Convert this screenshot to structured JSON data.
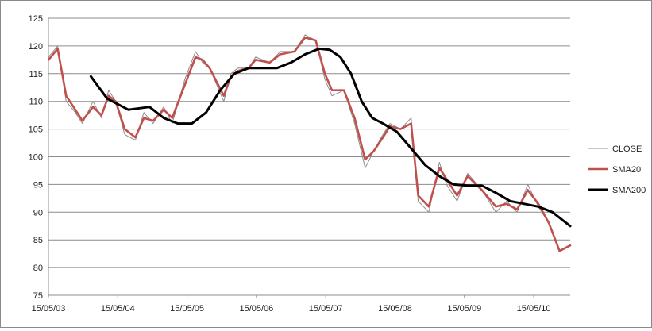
{
  "chart_data": {
    "type": "line",
    "title": "",
    "xlabel": "",
    "ylabel": "",
    "ylim": [
      75,
      125
    ],
    "yticks": [
      75,
      80,
      85,
      90,
      95,
      100,
      105,
      110,
      115,
      120,
      125
    ],
    "x_ticks": [
      "15/05/03",
      "15/05/04",
      "15/05/05",
      "15/05/06",
      "15/05/07",
      "15/05/08",
      "15/05/09",
      "15/05/10"
    ],
    "xlim": [
      2003.37,
      2010.75
    ],
    "grid": "horizontal",
    "legend_position": "right",
    "series": [
      {
        "name": "CLOSE",
        "color": "#8c8c8c",
        "x": [
          2003.37,
          2003.5,
          2003.62,
          2003.75,
          2003.85,
          2004.0,
          2004.12,
          2004.22,
          2004.32,
          2004.45,
          2004.6,
          2004.72,
          2004.85,
          2005.0,
          2005.12,
          2005.3,
          2005.45,
          2005.55,
          2005.65,
          2005.85,
          2005.95,
          2006.05,
          2006.2,
          2006.3,
          2006.5,
          2006.65,
          2006.85,
          2007.0,
          2007.15,
          2007.28,
          2007.38,
          2007.55,
          2007.7,
          2007.85,
          2007.97,
          2008.1,
          2008.2,
          2008.35,
          2008.5,
          2008.6,
          2008.75,
          2008.9,
          2009.0,
          2009.15,
          2009.3,
          2009.5,
          2009.7,
          2009.85,
          2010.0,
          2010.15,
          2010.3,
          2010.45,
          2010.6,
          2010.75
        ],
        "y": [
          118,
          120,
          110,
          108,
          106,
          110,
          107,
          112,
          110,
          104,
          103,
          108,
          106,
          109,
          106,
          114,
          119,
          117,
          116,
          110,
          115,
          116,
          116,
          118,
          117,
          119,
          119,
          122,
          121,
          114,
          111,
          112,
          106,
          98,
          101,
          104,
          106,
          105,
          107,
          92,
          90,
          99,
          95,
          92,
          97,
          94,
          90,
          92,
          90,
          95,
          91,
          88,
          83,
          84
        ]
      },
      {
        "name": "SMA20",
        "color": "#c0504d",
        "x": [
          2003.37,
          2003.5,
          2003.62,
          2003.75,
          2003.85,
          2004.0,
          2004.12,
          2004.22,
          2004.32,
          2004.45,
          2004.6,
          2004.72,
          2004.85,
          2005.0,
          2005.12,
          2005.3,
          2005.45,
          2005.55,
          2005.65,
          2005.85,
          2005.95,
          2006.05,
          2006.2,
          2006.3,
          2006.5,
          2006.65,
          2006.85,
          2007.0,
          2007.15,
          2007.28,
          2007.38,
          2007.55,
          2007.7,
          2007.85,
          2007.97,
          2008.1,
          2008.2,
          2008.35,
          2008.5,
          2008.6,
          2008.75,
          2008.9,
          2009.0,
          2009.15,
          2009.3,
          2009.5,
          2009.7,
          2009.85,
          2010.0,
          2010.15,
          2010.3,
          2010.45,
          2010.6,
          2010.75
        ],
        "y": [
          117.5,
          119.5,
          111,
          108.5,
          106.5,
          109,
          107.5,
          111,
          110,
          105,
          103.5,
          107,
          106.5,
          108.5,
          107,
          113,
          118,
          117.5,
          116,
          111,
          114.5,
          115.5,
          116,
          117.5,
          117,
          118.5,
          119,
          121.5,
          121,
          115,
          112,
          112,
          107,
          99.5,
          101,
          103.5,
          105.5,
          105,
          106,
          93,
          91,
          98,
          96,
          93,
          96.5,
          94,
          91,
          91.5,
          90.5,
          94,
          91.5,
          88,
          83,
          84
        ]
      },
      {
        "name": "SMA200",
        "color": "#000000",
        "x": [
          2003.97,
          2004.2,
          2004.5,
          2004.8,
          2005.0,
          2005.2,
          2005.4,
          2005.6,
          2005.8,
          2006.0,
          2006.2,
          2006.4,
          2006.6,
          2006.8,
          2007.0,
          2007.2,
          2007.35,
          2007.5,
          2007.65,
          2007.8,
          2007.95,
          2008.1,
          2008.3,
          2008.5,
          2008.7,
          2008.9,
          2009.1,
          2009.3,
          2009.5,
          2009.7,
          2009.9,
          2010.1,
          2010.3,
          2010.5,
          2010.75
        ],
        "y": [
          114.5,
          110.5,
          108.5,
          109,
          107,
          106,
          106,
          108,
          112,
          115,
          116,
          116,
          116,
          117,
          118.5,
          119.5,
          119.3,
          118,
          115,
          110,
          107,
          106,
          104.5,
          101.5,
          98.5,
          96.5,
          95,
          94.8,
          94.8,
          93.5,
          92,
          91.5,
          91,
          90,
          87.5
        ]
      }
    ]
  }
}
